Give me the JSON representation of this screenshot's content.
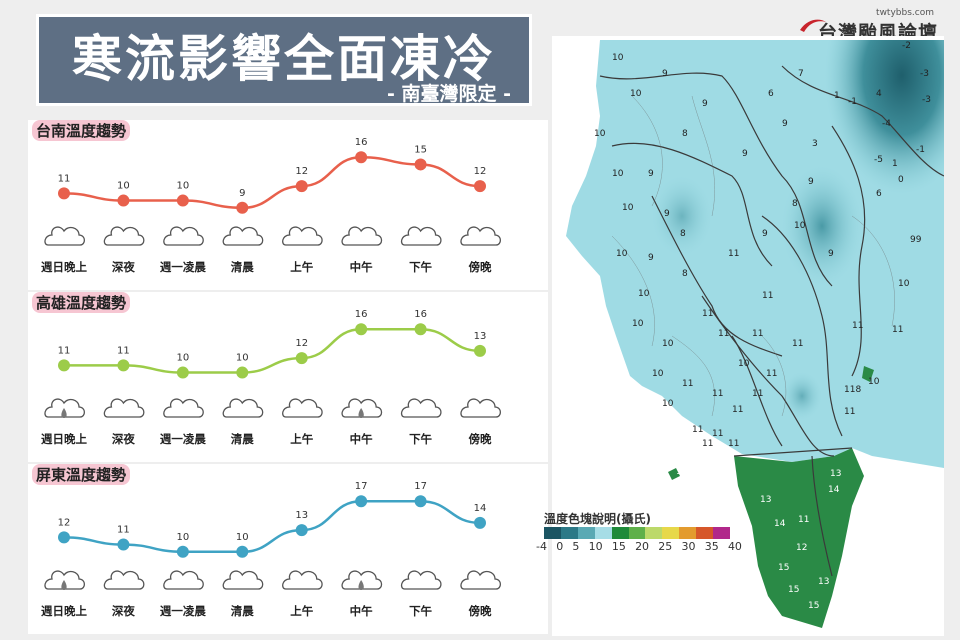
{
  "header": {
    "title": "寒流影響全面凍冷",
    "subtitle": "- 南臺灣限定 -"
  },
  "logo": {
    "url": "twtybbs.com",
    "name": "台灣颱風論壇"
  },
  "chart_data": [
    {
      "type": "line",
      "title": "台南溫度趨勢",
      "categories": [
        "週日晚上",
        "深夜",
        "週一凌晨",
        "清晨",
        "上午",
        "中午",
        "下午",
        "傍晚"
      ],
      "values": [
        11,
        10,
        10,
        9,
        12,
        16,
        15,
        12
      ],
      "weather": [
        "cloud",
        "cloud",
        "cloud",
        "cloud",
        "cloud",
        "cloud",
        "cloud",
        "cloud"
      ],
      "color": "#e8604c",
      "ylim": [
        8,
        17
      ]
    },
    {
      "type": "line",
      "title": "高雄溫度趨勢",
      "categories": [
        "週日晚上",
        "深夜",
        "週一凌晨",
        "清晨",
        "上午",
        "中午",
        "下午",
        "傍晚"
      ],
      "values": [
        11,
        11,
        10,
        10,
        12,
        16,
        16,
        13
      ],
      "weather": [
        "rain",
        "cloud",
        "cloud",
        "cloud",
        "cloud",
        "rain",
        "cloud",
        "cloud"
      ],
      "color": "#9ccc49",
      "ylim": [
        8,
        17
      ]
    },
    {
      "type": "line",
      "title": "屏東溫度趨勢",
      "categories": [
        "週日晚上",
        "深夜",
        "週一凌晨",
        "清晨",
        "上午",
        "中午",
        "下午",
        "傍晚"
      ],
      "values": [
        12,
        11,
        10,
        10,
        13,
        17,
        17,
        14
      ],
      "weather": [
        "rain",
        "cloud",
        "cloud",
        "cloud",
        "cloud",
        "rain",
        "cloud",
        "cloud"
      ],
      "color": "#3fa3c4",
      "ylim": [
        9,
        18
      ]
    }
  ],
  "map": {
    "stations": [
      {
        "v": "10"
      },
      {
        "v": "10"
      },
      {
        "v": "9"
      },
      {
        "v": "8"
      },
      {
        "v": "9"
      },
      {
        "v": "10"
      },
      {
        "v": "10"
      },
      {
        "v": "9"
      },
      {
        "v": "10"
      },
      {
        "v": "9"
      },
      {
        "v": "8"
      },
      {
        "v": "9"
      },
      {
        "v": "9"
      },
      {
        "v": "6"
      },
      {
        "v": "7"
      },
      {
        "v": "3"
      },
      {
        "v": "1"
      },
      {
        "v": "-1"
      },
      {
        "v": "-2"
      },
      {
        "v": "-3"
      },
      {
        "v": "-5"
      },
      {
        "v": "4"
      },
      {
        "v": "-4"
      },
      {
        "v": "-3"
      },
      {
        "v": "1"
      },
      {
        "v": "0"
      },
      {
        "v": "-1"
      },
      {
        "v": "6"
      },
      {
        "v": "8"
      },
      {
        "v": "9"
      },
      {
        "v": "10"
      },
      {
        "v": "11"
      },
      {
        "v": "9"
      },
      {
        "v": "9"
      },
      {
        "v": "8"
      },
      {
        "v": "10"
      },
      {
        "v": "9"
      },
      {
        "v": "11"
      },
      {
        "v": "10"
      },
      {
        "v": "11"
      },
      {
        "v": "10"
      },
      {
        "v": "11"
      },
      {
        "v": "10"
      },
      {
        "v": "11"
      },
      {
        "v": "11"
      },
      {
        "v": "10"
      },
      {
        "v": "11"
      },
      {
        "v": "11"
      },
      {
        "v": "11"
      },
      {
        "v": "10"
      },
      {
        "v": "11"
      },
      {
        "v": "11"
      },
      {
        "v": "11"
      },
      {
        "v": "10"
      },
      {
        "v": "11"
      },
      {
        "v": "11"
      },
      {
        "v": "11"
      },
      {
        "v": "11"
      },
      {
        "v": "118"
      },
      {
        "v": "10"
      },
      {
        "v": "99"
      },
      {
        "v": "10"
      },
      {
        "v": "11"
      },
      {
        "v": "11"
      },
      {
        "v": "13"
      },
      {
        "v": "14"
      },
      {
        "v": "13"
      },
      {
        "v": "11"
      },
      {
        "v": "12"
      },
      {
        "v": "15"
      },
      {
        "v": "13"
      },
      {
        "v": "15"
      },
      {
        "v": "15"
      },
      {
        "v": "14"
      },
      {
        "v": "13"
      }
    ],
    "legend_title": "溫度色塊說明(攝氏)",
    "legend_ticks": [
      "-4",
      "0",
      "5",
      "10",
      "15",
      "20",
      "25",
      "30",
      "35",
      "40"
    ],
    "legend_colors": [
      "#1b5563",
      "#2c7987",
      "#5aa9b4",
      "#a6dde6",
      "#1f8a3a",
      "#5fb04a",
      "#bcd96a",
      "#e7d84a",
      "#e39b2e",
      "#d6572a",
      "#b1288a"
    ]
  }
}
